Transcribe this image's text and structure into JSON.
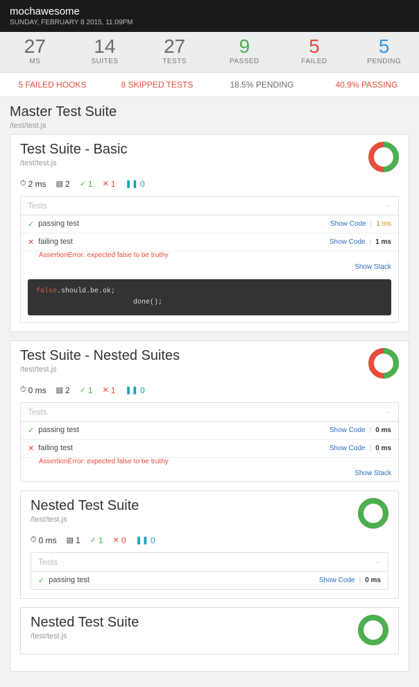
{
  "header": {
    "title": "mochawesome",
    "date": "SUNDAY, FEBRUARY 8 2015, 11:09PM"
  },
  "summary": [
    {
      "value": "27",
      "label": "MS",
      "color": "c-gray"
    },
    {
      "value": "14",
      "label": "SUITES",
      "color": "c-gray"
    },
    {
      "value": "27",
      "label": "TESTS",
      "color": "c-gray"
    },
    {
      "value": "9",
      "label": "PASSED",
      "color": "c-green"
    },
    {
      "value": "5",
      "label": "FAILED",
      "color": "c-red"
    },
    {
      "value": "5",
      "label": "PENDING",
      "color": "c-blue"
    }
  ],
  "subbar": [
    {
      "text": "5 FAILED HOOKS",
      "color": "c-red"
    },
    {
      "text": "8 SKIPPED TESTS",
      "color": "c-red"
    },
    {
      "text": "18.5% PENDING",
      "color": "c-gray"
    },
    {
      "text": "40.9% PASSING",
      "color": "c-red"
    }
  ],
  "labels": {
    "tests_header": "Tests",
    "show_code": "Show Code",
    "show_stack": "Show Stack"
  },
  "code": {
    "line1a": "false",
    "line1b": ".should.be.ok;",
    "line2": "done();"
  },
  "master": {
    "title": "Master Test Suite",
    "path": "/test/test.js"
  },
  "suite1": {
    "title": "Test Suite - Basic",
    "path": "/test/test.js",
    "duration": "2 ms",
    "count": "2",
    "passed": "1",
    "failed": "1",
    "pending": "0",
    "donut": {
      "pass_pct": 50,
      "pass_color": "#4caf50",
      "fail_color": "#e74c3c",
      "bg": "#fff",
      "stroke_width": 8
    },
    "tests": [
      {
        "name": "passing test",
        "status": "pass",
        "duration": "1 ms",
        "dur_class": "dur-orange"
      },
      {
        "name": "failing test",
        "status": "fail",
        "duration": "1 ms",
        "dur_class": "dur-black",
        "error": "AssertionError: expected false to be truthy",
        "show_stack": true,
        "show_code_block": true
      }
    ]
  },
  "suite2": {
    "title": "Test Suite - Nested Suites",
    "path": "/test/test.js",
    "duration": "0 ms",
    "count": "2",
    "passed": "1",
    "failed": "1",
    "pending": "0",
    "donut": {
      "pass_pct": 50,
      "pass_color": "#4caf50",
      "fail_color": "#e74c3c",
      "bg": "#fff",
      "stroke_width": 8
    },
    "tests": [
      {
        "name": "passing test",
        "status": "pass",
        "duration": "0 ms",
        "dur_class": "dur-black"
      },
      {
        "name": "failing test",
        "status": "fail",
        "duration": "0 ms",
        "dur_class": "dur-black",
        "error": "AssertionError: expected false to be truthy",
        "show_stack": true
      }
    ],
    "nested": [
      {
        "title": "Nested Test Suite",
        "path": "/test/test.js",
        "duration": "0 ms",
        "count": "1",
        "passed": "1",
        "failed": "0",
        "pending": "0",
        "donut": {
          "pass_pct": 100,
          "pass_color": "#4caf50",
          "fail_color": "#e74c3c",
          "bg": "#fff",
          "stroke_width": 8
        },
        "tests": [
          {
            "name": "passing test",
            "status": "pass",
            "duration": "0 ms",
            "dur_class": "dur-black"
          }
        ]
      },
      {
        "title": "Nested Test Suite",
        "path": "/test/test.js",
        "donut": {
          "pass_pct": 100,
          "pass_color": "#4caf50",
          "fail_color": "#e74c3c",
          "bg": "#fff",
          "stroke_width": 8
        }
      }
    ]
  }
}
